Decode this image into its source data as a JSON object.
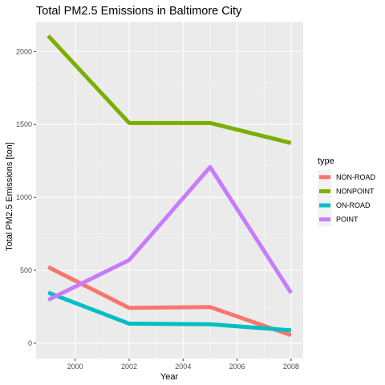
{
  "chart_data": {
    "type": "line",
    "title": "Total PM2.5 Emissions in Baltimore City",
    "xlabel": "Year",
    "ylabel": "Total PM2.5 Emissions [ton]",
    "x": [
      1999,
      2002,
      2005,
      2008
    ],
    "xlim": [
      1998.55,
      2008.45
    ],
    "ylim": [
      -105,
      2205
    ],
    "xticks": [
      2000,
      2002,
      2004,
      2006,
      2008
    ],
    "xtick_labels": [
      "2000",
      "2002",
      "2004",
      "2006",
      "2008"
    ],
    "yticks": [
      0,
      500,
      1000,
      1500,
      2000
    ],
    "ytick_labels": [
      "0",
      "500",
      "1000",
      "1500",
      "2000"
    ],
    "grid": true,
    "legend_title": "type",
    "legend_position": "right",
    "series": [
      {
        "name": "NON-ROAD",
        "color": "#F8766D",
        "values": [
          522,
          242,
          248,
          55
        ]
      },
      {
        "name": "NONPOINT",
        "color": "#7CAE00",
        "values": [
          2108,
          1510,
          1510,
          1373
        ]
      },
      {
        "name": "ON-ROAD",
        "color": "#00BFC4",
        "values": [
          347,
          134,
          130,
          88
        ]
      },
      {
        "name": "POINT",
        "color": "#C77CFF",
        "values": [
          297,
          570,
          1208,
          345
        ]
      }
    ]
  }
}
